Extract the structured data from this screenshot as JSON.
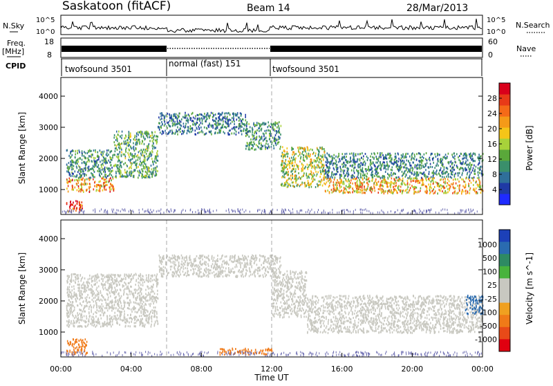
{
  "header": {
    "station": "Saskatoon (fitACF)",
    "beam": "Beam 14",
    "date": "28/Mar/2013"
  },
  "left_labels": {
    "nsky": "N.Sky",
    "freq": "Freq.",
    "mhz": "[MHz]",
    "cpid": "CPID"
  },
  "right_labels": {
    "nsearch": "N.Search",
    "nave": "Nave"
  },
  "noise_panel": {
    "tick_top": "10^5",
    "tick_bottom": "10^0",
    "right_tick_top": "10^5",
    "right_tick_bottom": "10^0"
  },
  "freq_panel": {
    "left_ticks": [
      "18",
      "8"
    ],
    "right_ticks": [
      "60",
      "0"
    ]
  },
  "cpid_segments": [
    {
      "label": "twofsound 3501"
    },
    {
      "label": "normal (fast) 151"
    },
    {
      "label": "twofsound 3501"
    }
  ],
  "colors": {
    "power_scale": [
      "#1f2bff",
      "#1f3aa5",
      "#2f6f9a",
      "#3a8f6b",
      "#5aa83a",
      "#a8d23a",
      "#f5c518",
      "#f59a18",
      "#f56a18",
      "#e83a18",
      "#d9001b"
    ],
    "velocity_scale": [
      "#1c40b8",
      "#2a6bb0",
      "#2e8a63",
      "#48b33c",
      "#c8c8c0",
      "#c8c8c0",
      "#f0a020",
      "#f07a18",
      "#e84a18",
      "#e00010"
    ],
    "range_gate_noise": "#6a6ab0"
  },
  "chart_data": [
    {
      "type": "heatmap",
      "name": "power",
      "ylabel": "Slant Range [km]",
      "yticks": [
        "1000",
        "2000",
        "3000",
        "4000"
      ],
      "ylim": [
        200,
        4600
      ],
      "xlim_hours": [
        0,
        24
      ],
      "colorbar": {
        "label": "Power [dB]",
        "ticks": [
          "4",
          "8",
          "12",
          "16",
          "20",
          "24",
          "28"
        ],
        "range": [
          0,
          32
        ]
      },
      "scatter_bands": [
        {
          "t_start": 0.3,
          "t_end": 1.2,
          "r_start": 300,
          "r_end": 700,
          "value": 28
        },
        {
          "t_start": 0.3,
          "t_end": 3.0,
          "r_start": 950,
          "r_end": 1400,
          "value": 22
        },
        {
          "t_start": 0.3,
          "t_end": 3.0,
          "r_start": 1400,
          "r_end": 2300,
          "value": 10
        },
        {
          "t_start": 3.0,
          "t_end": 5.5,
          "r_start": 1400,
          "r_end": 2900,
          "value": 12
        },
        {
          "t_start": 5.5,
          "t_end": 10.5,
          "r_start": 2800,
          "r_end": 3500,
          "value": 8
        },
        {
          "t_start": 10.5,
          "t_end": 12.5,
          "r_start": 2300,
          "r_end": 3200,
          "value": 10
        },
        {
          "t_start": 12.5,
          "t_end": 15.0,
          "r_start": 1100,
          "r_end": 2400,
          "value": 16
        },
        {
          "t_start": 15.0,
          "t_end": 24.0,
          "r_start": 900,
          "r_end": 1400,
          "value": 20
        },
        {
          "t_start": 15.0,
          "t_end": 24.0,
          "r_start": 1400,
          "r_end": 2200,
          "value": 9
        }
      ]
    },
    {
      "type": "heatmap",
      "name": "velocity",
      "ylabel": "Slant Range [km]",
      "yticks": [
        "1000",
        "2000",
        "3000",
        "4000"
      ],
      "ylim": [
        200,
        4600
      ],
      "xlim_hours": [
        0,
        24
      ],
      "xticks": [
        "00:00",
        "04:00",
        "08:00",
        "12:00",
        "16:00",
        "20:00",
        "00:00"
      ],
      "xlabel": "Time UT",
      "colorbar": {
        "label": "Velocity [m s^-1]",
        "ticks": [
          "1000",
          "500",
          "100",
          "25",
          "-25",
          "-100",
          "-500",
          "-1000"
        ]
      },
      "scatter_bands": [
        {
          "t_start": 0.3,
          "t_end": 1.5,
          "r_start": 300,
          "r_end": 800,
          "value": -150
        },
        {
          "t_start": 0.3,
          "t_end": 5.5,
          "r_start": 1200,
          "r_end": 2900,
          "value": 0
        },
        {
          "t_start": 5.5,
          "t_end": 12.5,
          "r_start": 2800,
          "r_end": 3500,
          "value": 0
        },
        {
          "t_start": 12.0,
          "t_end": 14.0,
          "r_start": 1500,
          "r_end": 3000,
          "value": 0
        },
        {
          "t_start": 14.0,
          "t_end": 24.0,
          "r_start": 1000,
          "r_end": 2200,
          "value": 0
        },
        {
          "t_start": 9.0,
          "t_end": 12.0,
          "r_start": 300,
          "r_end": 500,
          "value": -200
        },
        {
          "t_start": 23.0,
          "t_end": 24.0,
          "r_start": 1600,
          "r_end": 2200,
          "value": 300
        }
      ]
    }
  ]
}
